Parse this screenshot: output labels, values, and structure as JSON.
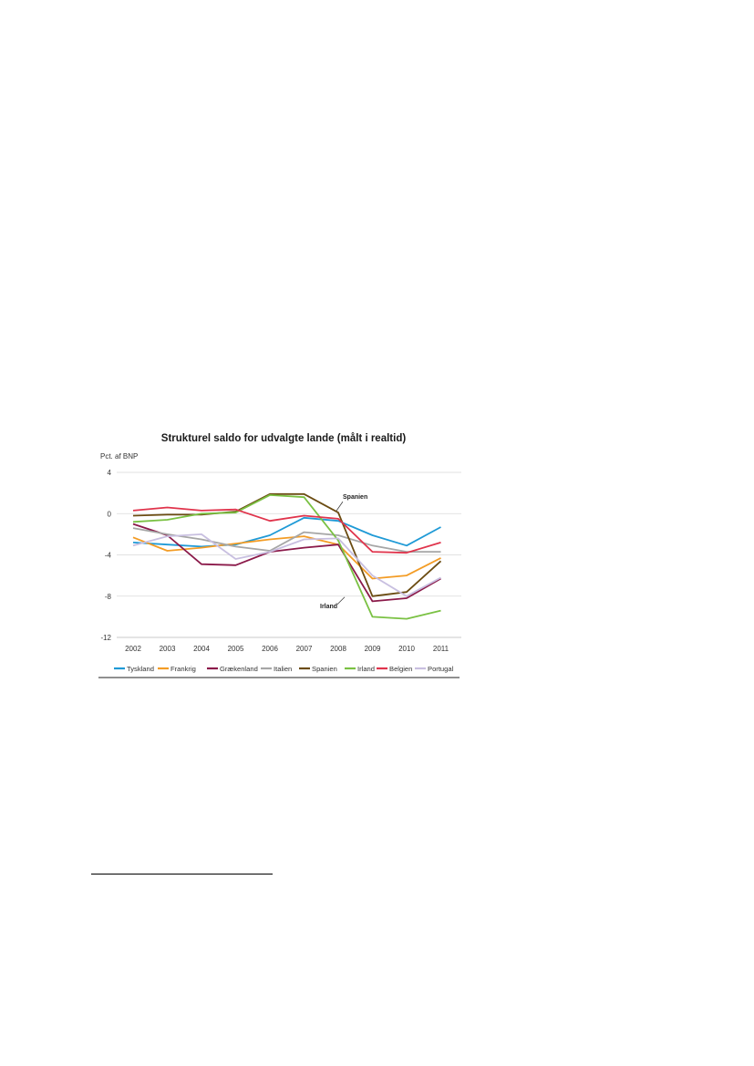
{
  "chart_data": {
    "type": "line",
    "title": "Strukturel saldo for udvalgte lande (målt i realtid)",
    "ylabel": "Pct. af BNP",
    "xlabel": "",
    "categories": [
      "2002",
      "2003",
      "2004",
      "2005",
      "2006",
      "2007",
      "2008",
      "2009",
      "2010",
      "2011"
    ],
    "ylim": [
      -12,
      4
    ],
    "yticks": [
      4,
      0,
      -4,
      -8,
      -12
    ],
    "grid": true,
    "legend_position": "bottom",
    "series": [
      {
        "name": "Tyskland",
        "color": "#1f9ad6",
        "values": [
          -2.8,
          -3.0,
          -3.2,
          -3.0,
          -2.1,
          -0.4,
          -0.7,
          -2.1,
          -3.1,
          -1.3
        ]
      },
      {
        "name": "Frankrig",
        "color": "#f39c25",
        "values": [
          -2.3,
          -3.6,
          -3.3,
          -2.9,
          -2.5,
          -2.2,
          -3.0,
          -6.3,
          -6.0,
          -4.3
        ]
      },
      {
        "name": "Grækenland",
        "color": "#8b1a4a",
        "values": [
          -1.0,
          -2.1,
          -4.9,
          -5.0,
          -3.7,
          -3.3,
          -3.0,
          -8.5,
          -8.2,
          -6.3
        ]
      },
      {
        "name": "Italien",
        "color": "#a6a6a6",
        "values": [
          -1.4,
          -2.0,
          -2.5,
          -3.2,
          -3.6,
          -1.8,
          -2.1,
          -3.1,
          -3.7,
          -3.7
        ]
      },
      {
        "name": "Spanien",
        "color": "#6b4c12",
        "values": [
          -0.2,
          -0.1,
          -0.1,
          0.2,
          1.9,
          1.9,
          0.1,
          -8.0,
          -7.6,
          -4.6
        ]
      },
      {
        "name": "Irland",
        "color": "#7ac143",
        "values": [
          -0.8,
          -0.6,
          0.0,
          0.1,
          1.8,
          1.6,
          -2.6,
          -10.0,
          -10.2,
          -9.4
        ]
      },
      {
        "name": "Belgien",
        "color": "#e0344c",
        "values": [
          0.3,
          0.6,
          0.3,
          0.4,
          -0.7,
          -0.2,
          -0.5,
          -3.7,
          -3.8,
          -2.8
        ]
      },
      {
        "name": "Portugal",
        "color": "#c8bfe0",
        "values": [
          -3.1,
          -2.2,
          -2.0,
          -4.4,
          -3.7,
          -2.5,
          -2.4,
          -6.0,
          -8.0,
          -6.2
        ]
      }
    ],
    "annotations": [
      {
        "text": "Spanien",
        "series": "Spanien",
        "x": "2008",
        "y": 0.1
      },
      {
        "text": "Irland",
        "series": "Irland",
        "x": "2008",
        "y": -8.0
      }
    ]
  }
}
